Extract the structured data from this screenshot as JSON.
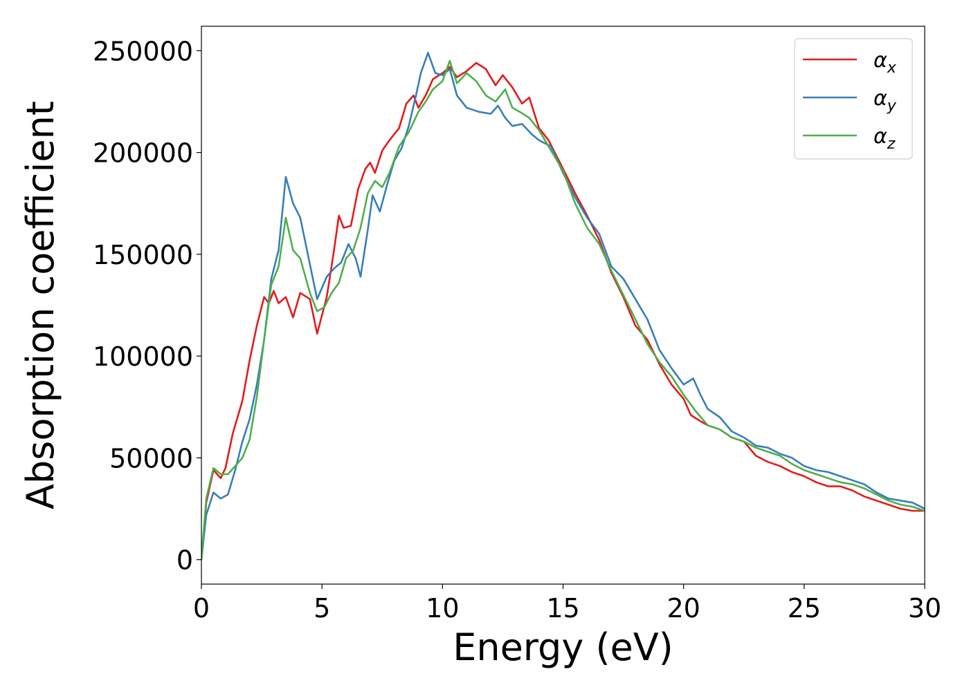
{
  "chart_data": {
    "type": "line",
    "title": "",
    "xlabel": "Energy (eV)",
    "ylabel": "Absorption coefficient",
    "xlim": [
      0,
      30
    ],
    "ylim": [
      -12000,
      262000
    ],
    "grid": false,
    "legend_position": "top-right",
    "x_ticks": [
      0,
      5,
      10,
      15,
      20,
      25,
      30
    ],
    "y_ticks": [
      0,
      50000,
      100000,
      150000,
      200000,
      250000
    ],
    "series": [
      {
        "name": "α_x",
        "label_main": "α",
        "label_sub": "x",
        "color": "#e41a1c",
        "points": [
          [
            0.0,
            0
          ],
          [
            0.2,
            28000
          ],
          [
            0.5,
            44000
          ],
          [
            0.8,
            40000
          ],
          [
            1.0,
            45000
          ],
          [
            1.3,
            62000
          ],
          [
            1.7,
            78000
          ],
          [
            2.0,
            98000
          ],
          [
            2.3,
            115000
          ],
          [
            2.6,
            129000
          ],
          [
            2.8,
            126000
          ],
          [
            3.0,
            132000
          ],
          [
            3.2,
            126000
          ],
          [
            3.5,
            129000
          ],
          [
            3.8,
            119000
          ],
          [
            4.1,
            131000
          ],
          [
            4.5,
            128000
          ],
          [
            4.8,
            111000
          ],
          [
            5.2,
            129000
          ],
          [
            5.5,
            152000
          ],
          [
            5.7,
            169000
          ],
          [
            5.9,
            163000
          ],
          [
            6.2,
            164000
          ],
          [
            6.5,
            182000
          ],
          [
            6.8,
            192000
          ],
          [
            7.0,
            195000
          ],
          [
            7.2,
            190000
          ],
          [
            7.5,
            201000
          ],
          [
            7.8,
            206000
          ],
          [
            8.2,
            212000
          ],
          [
            8.5,
            224000
          ],
          [
            8.8,
            228000
          ],
          [
            9.0,
            222000
          ],
          [
            9.3,
            228000
          ],
          [
            9.6,
            236000
          ],
          [
            10.0,
            239000
          ],
          [
            10.3,
            242000
          ],
          [
            10.6,
            237000
          ],
          [
            11.0,
            240000
          ],
          [
            11.4,
            244000
          ],
          [
            11.8,
            241000
          ],
          [
            12.2,
            233000
          ],
          [
            12.5,
            238000
          ],
          [
            12.9,
            232000
          ],
          [
            13.3,
            224000
          ],
          [
            13.6,
            227000
          ],
          [
            14.0,
            212000
          ],
          [
            14.4,
            206000
          ],
          [
            15.0,
            192000
          ],
          [
            15.5,
            180000
          ],
          [
            16.0,
            169000
          ],
          [
            16.5,
            157000
          ],
          [
            17.0,
            141000
          ],
          [
            17.5,
            129000
          ],
          [
            18.0,
            115000
          ],
          [
            18.5,
            108000
          ],
          [
            19.0,
            96000
          ],
          [
            19.5,
            86000
          ],
          [
            20.0,
            79000
          ],
          [
            20.3,
            71000
          ],
          [
            20.7,
            68000
          ],
          [
            21.0,
            66000
          ],
          [
            21.5,
            64000
          ],
          [
            22.0,
            60000
          ],
          [
            22.5,
            58000
          ],
          [
            23.0,
            51000
          ],
          [
            23.5,
            48000
          ],
          [
            24.0,
            46000
          ],
          [
            24.5,
            43000
          ],
          [
            25.0,
            41000
          ],
          [
            25.5,
            38000
          ],
          [
            26.0,
            36000
          ],
          [
            26.5,
            36000
          ],
          [
            27.0,
            34000
          ],
          [
            27.5,
            31000
          ],
          [
            28.0,
            29000
          ],
          [
            28.5,
            27000
          ],
          [
            29.0,
            25000
          ],
          [
            29.5,
            24000
          ],
          [
            30.0,
            24000
          ]
        ]
      },
      {
        "name": "α_y",
        "label_main": "α",
        "label_sub": "y",
        "color": "#377eb8",
        "points": [
          [
            0.0,
            0
          ],
          [
            0.2,
            22000
          ],
          [
            0.5,
            33000
          ],
          [
            0.8,
            30000
          ],
          [
            1.1,
            32000
          ],
          [
            1.4,
            44000
          ],
          [
            1.7,
            58000
          ],
          [
            2.0,
            69000
          ],
          [
            2.3,
            86000
          ],
          [
            2.6,
            108000
          ],
          [
            2.9,
            138000
          ],
          [
            3.2,
            152000
          ],
          [
            3.5,
            188000
          ],
          [
            3.8,
            175000
          ],
          [
            4.1,
            168000
          ],
          [
            4.5,
            145000
          ],
          [
            4.8,
            128000
          ],
          [
            5.2,
            139000
          ],
          [
            5.5,
            143000
          ],
          [
            5.8,
            146000
          ],
          [
            6.1,
            155000
          ],
          [
            6.4,
            148000
          ],
          [
            6.6,
            139000
          ],
          [
            6.9,
            162000
          ],
          [
            7.1,
            179000
          ],
          [
            7.4,
            171000
          ],
          [
            7.7,
            184000
          ],
          [
            8.0,
            196000
          ],
          [
            8.3,
            202000
          ],
          [
            8.6,
            213000
          ],
          [
            8.9,
            228000
          ],
          [
            9.1,
            239000
          ],
          [
            9.4,
            249000
          ],
          [
            9.7,
            239000
          ],
          [
            10.0,
            238000
          ],
          [
            10.3,
            241000
          ],
          [
            10.6,
            228000
          ],
          [
            11.0,
            222000
          ],
          [
            11.5,
            220000
          ],
          [
            12.0,
            219000
          ],
          [
            12.3,
            223000
          ],
          [
            12.6,
            217000
          ],
          [
            12.9,
            213000
          ],
          [
            13.3,
            214000
          ],
          [
            13.7,
            209000
          ],
          [
            14.0,
            206000
          ],
          [
            14.5,
            203000
          ],
          [
            15.0,
            190000
          ],
          [
            15.5,
            178000
          ],
          [
            16.0,
            168000
          ],
          [
            16.5,
            160000
          ],
          [
            17.0,
            144000
          ],
          [
            17.5,
            138000
          ],
          [
            18.0,
            128000
          ],
          [
            18.5,
            118000
          ],
          [
            19.0,
            103000
          ],
          [
            19.5,
            94000
          ],
          [
            20.0,
            86000
          ],
          [
            20.4,
            89000
          ],
          [
            20.7,
            81000
          ],
          [
            21.0,
            74000
          ],
          [
            21.5,
            70000
          ],
          [
            22.0,
            63000
          ],
          [
            22.5,
            60000
          ],
          [
            23.0,
            56000
          ],
          [
            23.5,
            55000
          ],
          [
            24.0,
            52000
          ],
          [
            24.5,
            50000
          ],
          [
            25.0,
            46000
          ],
          [
            25.5,
            44000
          ],
          [
            26.0,
            43000
          ],
          [
            26.5,
            41000
          ],
          [
            27.0,
            39000
          ],
          [
            27.5,
            37000
          ],
          [
            28.0,
            33000
          ],
          [
            28.5,
            30000
          ],
          [
            29.0,
            29000
          ],
          [
            29.5,
            28000
          ],
          [
            30.0,
            25000
          ]
        ]
      },
      {
        "name": "α_z",
        "label_main": "α",
        "label_sub": "z",
        "color": "#4daf4a",
        "points": [
          [
            0.0,
            0
          ],
          [
            0.2,
            30000
          ],
          [
            0.5,
            45000
          ],
          [
            0.8,
            42000
          ],
          [
            1.1,
            42000
          ],
          [
            1.4,
            46000
          ],
          [
            1.7,
            50000
          ],
          [
            2.0,
            59000
          ],
          [
            2.3,
            80000
          ],
          [
            2.6,
            108000
          ],
          [
            2.9,
            135000
          ],
          [
            3.2,
            144000
          ],
          [
            3.5,
            168000
          ],
          [
            3.8,
            152000
          ],
          [
            4.1,
            148000
          ],
          [
            4.5,
            131000
          ],
          [
            4.8,
            122000
          ],
          [
            5.1,
            124000
          ],
          [
            5.4,
            131000
          ],
          [
            5.7,
            136000
          ],
          [
            6.0,
            148000
          ],
          [
            6.3,
            152000
          ],
          [
            6.6,
            163000
          ],
          [
            6.9,
            180000
          ],
          [
            7.2,
            186000
          ],
          [
            7.5,
            183000
          ],
          [
            7.8,
            190000
          ],
          [
            8.2,
            203000
          ],
          [
            8.6,
            210000
          ],
          [
            9.0,
            220000
          ],
          [
            9.3,
            225000
          ],
          [
            9.6,
            231000
          ],
          [
            10.0,
            235000
          ],
          [
            10.3,
            245000
          ],
          [
            10.6,
            234000
          ],
          [
            11.0,
            239000
          ],
          [
            11.4,
            235000
          ],
          [
            11.8,
            228000
          ],
          [
            12.2,
            225000
          ],
          [
            12.6,
            231000
          ],
          [
            12.9,
            222000
          ],
          [
            13.2,
            220000
          ],
          [
            13.6,
            217000
          ],
          [
            14.0,
            211000
          ],
          [
            14.5,
            201000
          ],
          [
            15.0,
            191000
          ],
          [
            15.5,
            175000
          ],
          [
            16.0,
            163000
          ],
          [
            16.5,
            155000
          ],
          [
            17.0,
            142000
          ],
          [
            17.5,
            130000
          ],
          [
            18.0,
            118000
          ],
          [
            18.5,
            106000
          ],
          [
            19.0,
            97000
          ],
          [
            19.5,
            90000
          ],
          [
            20.0,
            81000
          ],
          [
            20.5,
            73000
          ],
          [
            21.0,
            66000
          ],
          [
            21.5,
            64000
          ],
          [
            22.0,
            60000
          ],
          [
            22.5,
            58000
          ],
          [
            23.0,
            55000
          ],
          [
            23.5,
            53000
          ],
          [
            24.0,
            51000
          ],
          [
            24.5,
            47000
          ],
          [
            25.0,
            44000
          ],
          [
            25.5,
            42000
          ],
          [
            26.0,
            40000
          ],
          [
            26.5,
            38000
          ],
          [
            27.0,
            37000
          ],
          [
            27.5,
            35000
          ],
          [
            28.0,
            32000
          ],
          [
            28.5,
            29000
          ],
          [
            29.0,
            27000
          ],
          [
            29.5,
            26000
          ],
          [
            30.0,
            24000
          ]
        ]
      }
    ]
  }
}
